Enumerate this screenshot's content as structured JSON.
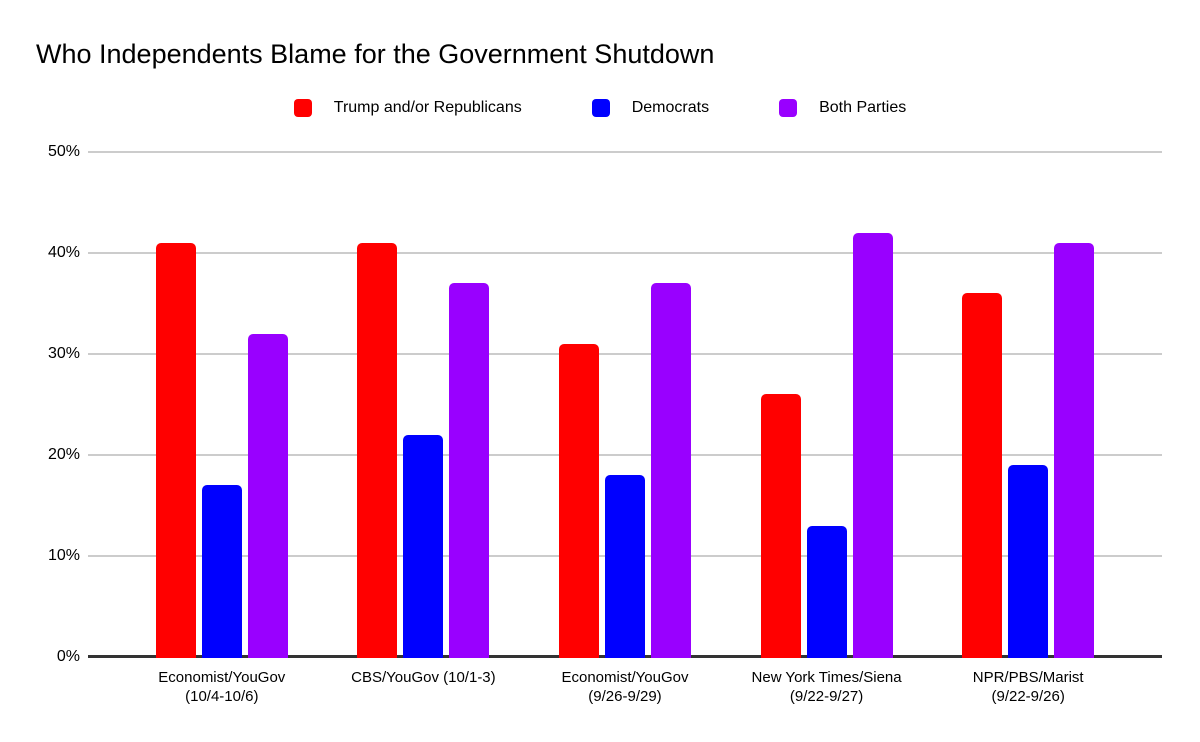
{
  "title": "Who Independents Blame for the Government Shutdown",
  "legend": {
    "items": [
      {
        "label": "Trump and/or Republicans",
        "color": "#ff0000"
      },
      {
        "label": "Democrats",
        "color": "#0000ff"
      },
      {
        "label": "Both Parties",
        "color": "#9900ff"
      }
    ]
  },
  "chart_data": {
    "type": "bar",
    "title": "Who Independents Blame for the Government Shutdown",
    "categories": [
      "Economist/YouGov (10/4-10/6)",
      "CBS/YouGov (10/1-3)",
      "Economist/YouGov (9/26-9/29)",
      "New York Times/Siena (9/22-9/27)",
      "NPR/PBS/Marist (9/22-9/26)"
    ],
    "category_lines": [
      [
        "Economist/YouGov",
        "(10/4-10/6)"
      ],
      [
        "CBS/YouGov (10/1-3)"
      ],
      [
        "Economist/YouGov",
        "(9/26-9/29)"
      ],
      [
        "New York Times/Siena",
        "(9/22-9/27)"
      ],
      [
        "NPR/PBS/Marist",
        "(9/22-9/26)"
      ]
    ],
    "series": [
      {
        "name": "Trump and/or Republicans",
        "color": "#ff0000",
        "values": [
          41,
          41,
          31,
          26,
          36
        ]
      },
      {
        "name": "Democrats",
        "color": "#0000ff",
        "values": [
          17,
          22,
          18,
          13,
          19
        ]
      },
      {
        "name": "Both Parties",
        "color": "#9900ff",
        "values": [
          32,
          37,
          37,
          42,
          41
        ]
      }
    ],
    "ylabel": "",
    "xlabel": "",
    "ylim": [
      0,
      50
    ],
    "yticks": [
      {
        "value": 0,
        "label": "0%"
      },
      {
        "value": 10,
        "label": "10%"
      },
      {
        "value": 20,
        "label": "20%"
      },
      {
        "value": 30,
        "label": "30%"
      },
      {
        "value": 40,
        "label": "40%"
      },
      {
        "value": 50,
        "label": "50%"
      }
    ],
    "grid": true,
    "legend_position": "top",
    "axis_color": "#333333",
    "gridline_color": "#cccccc",
    "background_color": "#ffffff"
  }
}
